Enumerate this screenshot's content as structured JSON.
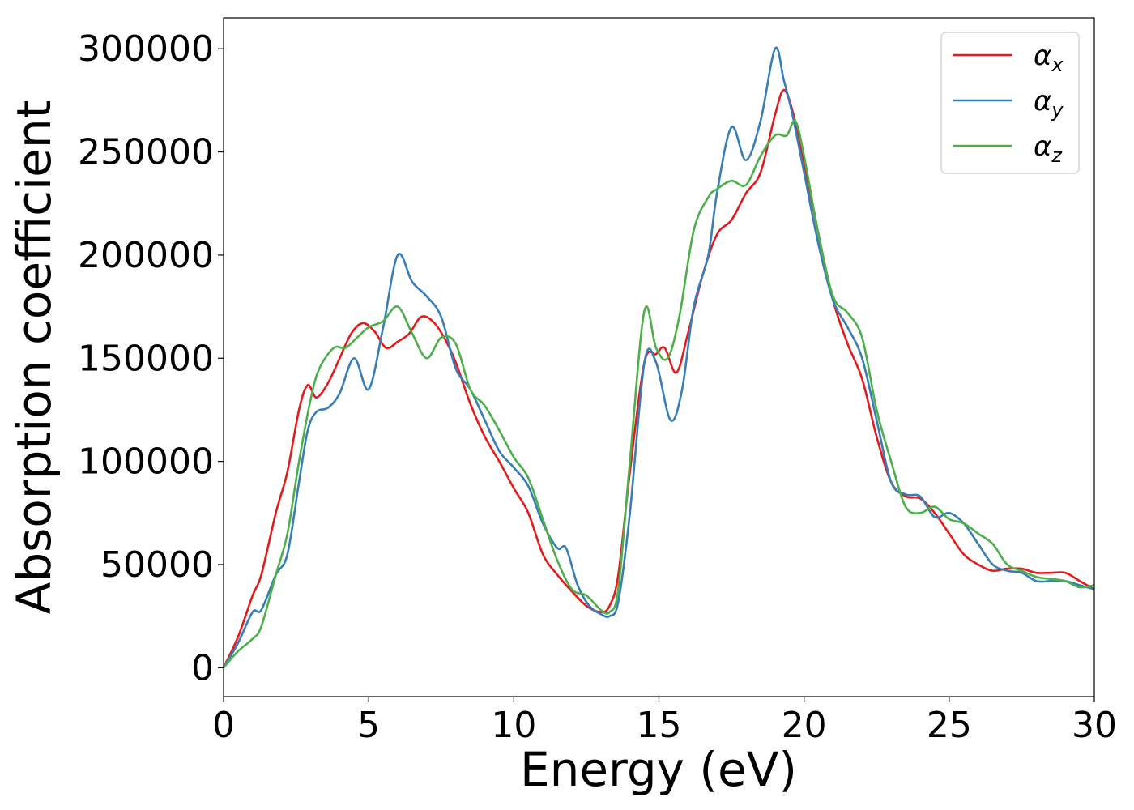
{
  "chart_data": {
    "type": "line",
    "title": "",
    "xlabel": "Energy (eV)",
    "ylabel": "Absorption coefficient",
    "xlim": [
      0,
      30
    ],
    "ylim": [
      -14000,
      315000
    ],
    "xticks": [
      0,
      5,
      10,
      15,
      20,
      25,
      30
    ],
    "xtick_labels": [
      "0",
      "5",
      "10",
      "15",
      "20",
      "25",
      "30"
    ],
    "yticks": [
      0,
      50000,
      100000,
      150000,
      200000,
      250000,
      300000
    ],
    "ytick_labels": [
      "0",
      "50000",
      "100000",
      "150000",
      "200000",
      "250000",
      "300000"
    ],
    "grid": false,
    "legend_position": "top-right",
    "series": [
      {
        "name": "α",
        "subscript": "x",
        "color": "#e41a1c",
        "x": [
          0,
          0.5,
          1.0,
          1.3,
          1.8,
          2.2,
          2.6,
          2.9,
          3.2,
          3.6,
          4.0,
          4.4,
          4.8,
          5.2,
          5.6,
          6.0,
          6.4,
          6.8,
          7.2,
          7.6,
          8.0,
          8.5,
          9.0,
          9.5,
          10.0,
          10.5,
          11.0,
          11.5,
          12.0,
          12.5,
          13.0,
          13.3,
          13.6,
          14.0,
          14.5,
          14.9,
          15.2,
          15.6,
          16.0,
          16.5,
          17.0,
          17.5,
          18.0,
          18.5,
          19.0,
          19.3,
          19.6,
          20.0,
          20.5,
          21.0,
          21.5,
          22.0,
          22.5,
          23.0,
          23.5,
          24.0,
          24.5,
          25.0,
          25.5,
          26.0,
          26.5,
          27.0,
          27.5,
          28.0,
          28.5,
          29.0,
          29.5,
          30.0
        ],
        "values": [
          0,
          15000,
          35000,
          45000,
          75000,
          95000,
          125000,
          137000,
          131000,
          138000,
          150000,
          162000,
          167000,
          163000,
          155000,
          158000,
          162000,
          170000,
          168000,
          160000,
          148000,
          128000,
          112000,
          100000,
          87000,
          75000,
          55000,
          45000,
          37000,
          30000,
          27000,
          30000,
          45000,
          95000,
          148000,
          152000,
          155000,
          143000,
          162000,
          190000,
          210000,
          217000,
          230000,
          240000,
          268000,
          280000,
          270000,
          245000,
          210000,
          178000,
          157000,
          140000,
          112000,
          90000,
          83000,
          82000,
          75000,
          65000,
          55000,
          50000,
          47000,
          48000,
          48000,
          46000,
          46000,
          46000,
          42000,
          38000
        ]
      },
      {
        "name": "α",
        "subscript": "y",
        "color": "#377eb8",
        "x": [
          0,
          0.5,
          1.0,
          1.3,
          1.8,
          2.2,
          2.6,
          2.9,
          3.2,
          3.6,
          4.0,
          4.5,
          5.0,
          5.5,
          6.0,
          6.5,
          7.0,
          7.5,
          8.0,
          8.5,
          9.0,
          9.5,
          10.0,
          10.5,
          11.0,
          11.5,
          11.8,
          12.2,
          12.6,
          13.0,
          13.3,
          13.6,
          14.0,
          14.5,
          14.9,
          15.4,
          15.8,
          16.2,
          16.7,
          17.0,
          17.5,
          18.0,
          18.5,
          19.0,
          19.3,
          19.6,
          20.0,
          20.5,
          21.0,
          21.5,
          22.0,
          22.5,
          23.0,
          23.5,
          24.0,
          24.5,
          25.0,
          25.5,
          26.0,
          26.5,
          27.0,
          27.5,
          28.0,
          28.5,
          29.0,
          29.5,
          30.0
        ],
        "values": [
          0,
          12000,
          27000,
          28000,
          45000,
          55000,
          90000,
          115000,
          124000,
          126000,
          133000,
          150000,
          135000,
          165000,
          200000,
          187000,
          180000,
          170000,
          145000,
          135000,
          120000,
          105000,
          97000,
          88000,
          70000,
          58000,
          58000,
          40000,
          30000,
          26000,
          25000,
          32000,
          75000,
          148000,
          148000,
          120000,
          135000,
          175000,
          200000,
          230000,
          262000,
          246000,
          265000,
          300000,
          285000,
          268000,
          240000,
          205000,
          178000,
          165000,
          150000,
          120000,
          90000,
          84000,
          83000,
          73000,
          75000,
          70000,
          60000,
          50000,
          47000,
          46000,
          42000,
          42000,
          42000,
          40000,
          38000
        ]
      },
      {
        "name": "α",
        "subscript": "z",
        "color": "#4daf4a",
        "x": [
          0,
          0.5,
          1.0,
          1.3,
          1.8,
          2.2,
          2.6,
          3.0,
          3.3,
          3.8,
          4.2,
          4.6,
          5.0,
          5.5,
          6.0,
          6.5,
          7.0,
          7.5,
          8.0,
          8.5,
          9.0,
          9.5,
          10.0,
          10.5,
          11.0,
          11.5,
          12.0,
          12.5,
          13.0,
          13.3,
          13.6,
          14.0,
          14.5,
          14.9,
          15.3,
          15.7,
          16.2,
          16.7,
          17.0,
          17.5,
          18.0,
          18.5,
          19.0,
          19.4,
          19.7,
          20.0,
          20.5,
          21.0,
          21.5,
          22.0,
          22.5,
          23.0,
          23.5,
          24.0,
          24.5,
          25.0,
          25.5,
          26.0,
          26.5,
          27.0,
          27.5,
          28.0,
          28.5,
          29.0,
          29.5,
          30.0
        ],
        "values": [
          0,
          8000,
          14000,
          20000,
          45000,
          65000,
          100000,
          130000,
          145000,
          155000,
          155000,
          160000,
          165000,
          168000,
          175000,
          162000,
          150000,
          160000,
          157000,
          135000,
          127000,
          115000,
          102000,
          92000,
          72000,
          52000,
          38000,
          35000,
          28000,
          27000,
          38000,
          100000,
          173000,
          155000,
          150000,
          170000,
          212000,
          228000,
          232000,
          236000,
          234000,
          248000,
          258000,
          258000,
          265000,
          248000,
          210000,
          180000,
          172000,
          160000,
          125000,
          100000,
          78000,
          75000,
          78000,
          72000,
          70000,
          65000,
          60000,
          50000,
          47000,
          44000,
          43000,
          42000,
          39000,
          40000
        ]
      }
    ]
  }
}
